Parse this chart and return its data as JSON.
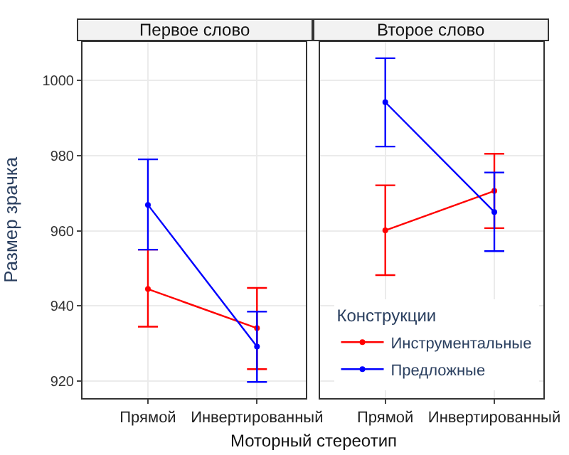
{
  "chart_data": [
    {
      "type": "line",
      "title": "Первое слово",
      "xlabel": "Моторный стереотип",
      "ylabel": "Размер зрачка",
      "categories": [
        "Прямой",
        "Инвертированный"
      ],
      "ylim": [
        915.5,
        1010.3
      ],
      "yticks": [
        920,
        940,
        960,
        980,
        1000
      ],
      "grid": true,
      "marker": "circle",
      "series": [
        {
          "color": "#ff0000",
          "values": [
            944.5,
            934.1
          ],
          "errors": [
            [
              934.5,
              955
            ],
            [
              923.2,
              944.8
            ]
          ]
        },
        {
          "color": "#0000ff",
          "values": [
            966.9,
            929.2
          ],
          "errors": [
            [
              955,
              979
            ],
            [
              919.8,
              938.5
            ]
          ]
        }
      ]
    },
    {
      "type": "line",
      "title": "Второе слово",
      "legend_title": "Конструкции",
      "categories": [
        "Прямой",
        "Инвертированный"
      ],
      "ylim": [
        915.5,
        1010.3
      ],
      "yticks": [
        920,
        940,
        960,
        980,
        1000
      ],
      "tick_labels": "x",
      "grid": true,
      "marker": "circle",
      "legend": "bottom right",
      "series": [
        {
          "name": "Инструментальные",
          "color": "#ff0000",
          "values": [
            960.1,
            970.6
          ],
          "errors": [
            [
              948.2,
              972.1
            ],
            [
              960.7,
              980.5
            ]
          ]
        },
        {
          "name": "Предложные",
          "color": "#0000ff",
          "values": [
            994.2,
            965
          ],
          "errors": [
            [
              982.4,
              1005.9
            ],
            [
              954.6,
              975.5
            ]
          ]
        }
      ]
    }
  ]
}
